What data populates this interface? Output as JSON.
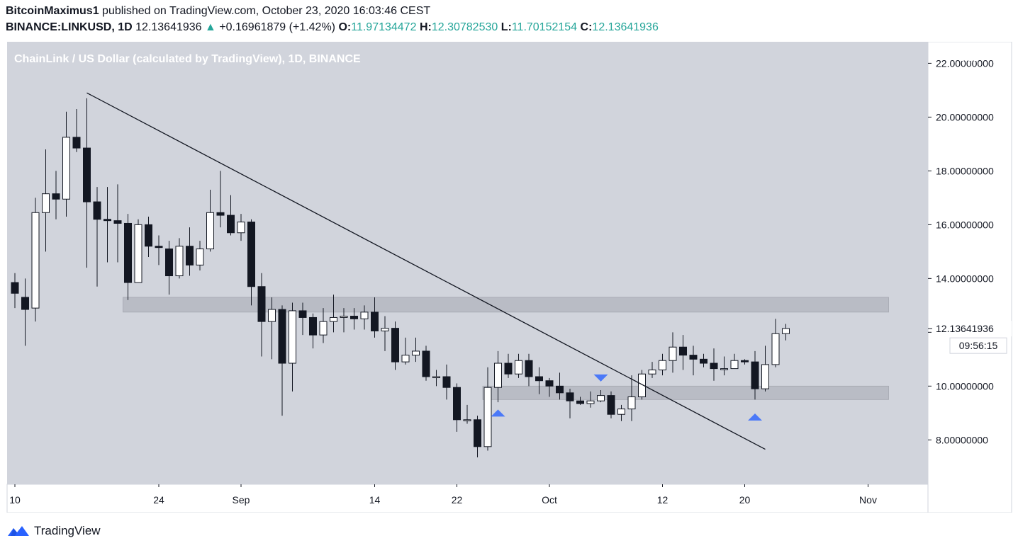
{
  "header": {
    "author": "BitcoinMaximus1",
    "published_text": "published on TradingView.com, October 23, 2020 16:03:46 CEST",
    "symbol": "BINANCE:LINKUSD, 1D",
    "last": "12.13641936",
    "change": "+0.16961879 (+1.42%)",
    "o_label": "O:",
    "o_value": "11.97134472",
    "h_label": "H:",
    "h_value": "12.30782530",
    "l_label": "L:",
    "l_value": "11.70152154",
    "c_label": "C:",
    "c_value": "12.13641936"
  },
  "chart_title": "ChainLink / US Dollar (calculated by TradingView), 1D, BINANCE",
  "footer": {
    "brand": "TradingView"
  },
  "colors": {
    "background": "#d1d4dc",
    "bull": "#ffffff",
    "bear": "#131722",
    "zone": "#b2b5be",
    "marker": "#2962ff",
    "text": "#131722"
  },
  "chart_data": {
    "type": "candlestick",
    "title": "ChainLink / US Dollar (calculated by TradingView), 1D, BINANCE",
    "currency": "USD",
    "ylim": [
      6.35,
      22.8
    ],
    "y_ticks": [
      {
        "v": 8,
        "label": "8.00000000"
      },
      {
        "v": 10,
        "label": "10.00000000"
      },
      {
        "v": 12,
        "label": ""
      },
      {
        "v": 14,
        "label": "14.00000000"
      },
      {
        "v": 16,
        "label": "16.00000000"
      },
      {
        "v": 18,
        "label": "18.00000000"
      },
      {
        "v": 20,
        "label": "20.00000000"
      },
      {
        "v": 22,
        "label": "22.00000000"
      }
    ],
    "x_ticks": [
      {
        "i": 0,
        "label": "10"
      },
      {
        "i": 14,
        "label": "24"
      },
      {
        "i": 22,
        "label": "Sep"
      },
      {
        "i": 35,
        "label": "14"
      },
      {
        "i": 43,
        "label": "22"
      },
      {
        "i": 52,
        "label": "Oct"
      },
      {
        "i": 63,
        "label": "12"
      },
      {
        "i": 71,
        "label": "20"
      },
      {
        "i": 83,
        "label": "Nov"
      }
    ],
    "last_price_label": "12.13641936",
    "countdown_label": "09:56:15",
    "last_price": 12.136,
    "candles": [
      [
        13.85,
        13.45,
        14.2,
        12.9
      ],
      [
        13.3,
        12.85,
        14.0,
        11.5
      ],
      [
        12.9,
        16.45,
        17.0,
        12.4
      ],
      [
        16.45,
        17.15,
        18.8,
        15.0
      ],
      [
        17.15,
        16.95,
        18.0,
        16.2
      ],
      [
        16.95,
        19.25,
        20.2,
        16.3
      ],
      [
        19.25,
        18.85,
        20.3,
        18.7
      ],
      [
        18.85,
        16.85,
        20.7,
        14.4
      ],
      [
        16.85,
        16.2,
        17.4,
        13.7
      ],
      [
        16.2,
        16.15,
        17.4,
        14.6
      ],
      [
        16.15,
        16.05,
        17.5,
        14.6
      ],
      [
        16.05,
        13.85,
        16.4,
        13.2
      ],
      [
        13.85,
        16.0,
        16.2,
        13.9
      ],
      [
        16.0,
        15.2,
        16.3,
        14.8
      ],
      [
        15.2,
        15.15,
        15.6,
        14.5
      ],
      [
        15.1,
        14.1,
        15.4,
        13.4
      ],
      [
        14.1,
        15.2,
        15.5,
        14.0
      ],
      [
        15.2,
        14.5,
        15.9,
        14.1
      ],
      [
        14.5,
        15.1,
        15.4,
        14.3
      ],
      [
        15.1,
        16.45,
        17.3,
        15.0
      ],
      [
        16.45,
        16.35,
        18.0,
        15.9
      ],
      [
        16.35,
        15.7,
        17.1,
        15.6
      ],
      [
        15.7,
        16.1,
        16.4,
        15.4
      ],
      [
        16.1,
        13.7,
        16.2,
        13.0
      ],
      [
        13.7,
        12.4,
        14.2,
        11.1
      ],
      [
        12.4,
        12.85,
        13.3,
        11.0
      ],
      [
        12.85,
        10.85,
        13.0,
        8.9
      ],
      [
        10.85,
        12.8,
        13.1,
        9.8
      ],
      [
        12.8,
        12.55,
        13.1,
        11.9
      ],
      [
        12.55,
        11.9,
        12.7,
        11.4
      ],
      [
        11.9,
        12.4,
        12.9,
        11.6
      ],
      [
        12.4,
        12.55,
        13.4,
        12.0
      ],
      [
        12.55,
        12.6,
        12.9,
        12.0
      ],
      [
        12.6,
        12.5,
        12.9,
        12.1
      ],
      [
        12.5,
        12.75,
        13.0,
        12.1
      ],
      [
        12.75,
        12.05,
        13.3,
        11.8
      ],
      [
        12.05,
        12.15,
        12.6,
        11.3
      ],
      [
        12.15,
        10.9,
        12.4,
        10.6
      ],
      [
        10.9,
        11.15,
        11.8,
        10.8
      ],
      [
        11.15,
        11.3,
        11.8,
        10.9
      ],
      [
        11.3,
        10.35,
        11.5,
        10.2
      ],
      [
        10.35,
        10.35,
        10.6,
        10.0
      ],
      [
        10.35,
        9.95,
        10.8,
        9.5
      ],
      [
        9.95,
        8.75,
        10.1,
        8.3
      ],
      [
        8.75,
        8.75,
        9.3,
        8.6
      ],
      [
        8.75,
        7.75,
        8.9,
        7.35
      ],
      [
        7.75,
        9.95,
        10.7,
        7.6
      ],
      [
        9.95,
        10.85,
        11.3,
        9.4
      ],
      [
        10.85,
        10.45,
        11.2,
        10.3
      ],
      [
        10.45,
        10.95,
        11.2,
        10.3
      ],
      [
        10.95,
        10.35,
        11.2,
        10.0
      ],
      [
        10.35,
        10.2,
        10.7,
        9.7
      ],
      [
        10.2,
        10.0,
        10.3,
        9.6
      ],
      [
        10.0,
        9.75,
        10.5,
        9.5
      ],
      [
        9.75,
        9.45,
        9.9,
        8.8
      ],
      [
        9.45,
        9.35,
        9.6,
        9.3
      ],
      [
        9.35,
        9.45,
        9.8,
        9.2
      ],
      [
        9.45,
        9.65,
        9.85,
        9.4
      ],
      [
        9.65,
        8.95,
        9.8,
        8.8
      ],
      [
        8.95,
        9.15,
        9.3,
        8.7
      ],
      [
        9.15,
        9.6,
        10.4,
        8.7
      ],
      [
        9.6,
        10.45,
        10.6,
        9.5
      ],
      [
        10.45,
        10.6,
        10.9,
        10.3
      ],
      [
        10.6,
        10.95,
        11.2,
        10.4
      ],
      [
        10.95,
        11.45,
        12.0,
        10.5
      ],
      [
        11.45,
        11.15,
        11.9,
        10.6
      ],
      [
        11.15,
        11.0,
        11.5,
        10.4
      ],
      [
        11.0,
        10.85,
        11.2,
        10.7
      ],
      [
        10.85,
        10.65,
        11.4,
        10.2
      ],
      [
        10.65,
        10.65,
        11.1,
        10.4
      ],
      [
        10.65,
        10.95,
        11.2,
        10.7
      ],
      [
        10.95,
        10.9,
        11.0,
        10.8
      ],
      [
        10.9,
        9.9,
        11.3,
        9.5
      ],
      [
        9.9,
        10.8,
        11.5,
        9.8
      ],
      [
        10.8,
        11.95,
        12.5,
        10.7
      ],
      [
        11.95,
        12.14,
        12.31,
        11.7
      ]
    ],
    "trendline": {
      "from": {
        "i": 7,
        "v": 20.9
      },
      "to": {
        "i": 73,
        "v": 7.65
      }
    },
    "zones": [
      {
        "i0": 11,
        "i1": 85,
        "lo": 12.75,
        "hi": 13.3
      },
      {
        "i0": 46,
        "i1": 85,
        "lo": 9.5,
        "hi": 10.0
      }
    ],
    "markers": [
      {
        "i": 47,
        "v": 9.0,
        "dir": "up"
      },
      {
        "i": 57,
        "v": 10.3,
        "dir": "down"
      },
      {
        "i": 72,
        "v": 8.85,
        "dir": "up"
      }
    ]
  }
}
